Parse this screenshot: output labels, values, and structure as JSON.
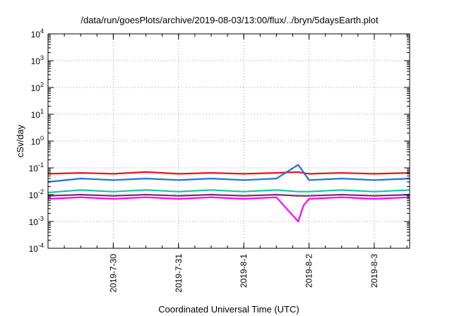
{
  "chart_data": {
    "type": "line",
    "title": "/data/run/goesPlots/archive/2019-08-03/13:00/flux/../bryn/5daysEarth.plot",
    "xlabel": "Coordinated Universal Time (UTC)",
    "ylabel": "cSv/day",
    "yscale": "log",
    "ylim": [
      0.0001,
      10000
    ],
    "xlim": [
      "2019-07-29T00:00",
      "2019-08-03T13:00"
    ],
    "yticks": [
      {
        "base": "10",
        "exp": "-4"
      },
      {
        "base": "10",
        "exp": "-3"
      },
      {
        "base": "10",
        "exp": "-2"
      },
      {
        "base": "10",
        "exp": "-1"
      },
      {
        "base": "10",
        "exp": "0"
      },
      {
        "base": "10",
        "exp": "1"
      },
      {
        "base": "10",
        "exp": "2"
      },
      {
        "base": "10",
        "exp": "3"
      },
      {
        "base": "10",
        "exp": "4"
      }
    ],
    "xticks": [
      "2019-7-30",
      "2019-7-31",
      "2019-8-1",
      "2019-8-2",
      "2019-8-3"
    ],
    "xtick_dates": [
      "2019-07-30",
      "2019-07-31",
      "2019-08-01",
      "2019-08-02",
      "2019-08-03"
    ],
    "grid": true,
    "legend": "none",
    "series": [
      {
        "color": "#e8141b",
        "x": [
          "2019-07-29T00:00",
          "2019-07-29T12:00",
          "2019-07-30T00:00",
          "2019-07-30T12:00",
          "2019-07-31T00:00",
          "2019-07-31T12:00",
          "2019-08-01T00:00",
          "2019-08-01T12:00",
          "2019-08-01T20:00",
          "2019-08-02T00:00",
          "2019-08-02T12:00",
          "2019-08-03T00:00",
          "2019-08-03T13:00"
        ],
        "values": [
          0.06,
          0.065,
          0.06,
          0.07,
          0.06,
          0.065,
          0.06,
          0.065,
          0.07,
          0.06,
          0.065,
          0.06,
          0.065
        ]
      },
      {
        "color": "#1f6fe5",
        "x": [
          "2019-07-29T00:00",
          "2019-07-29T12:00",
          "2019-07-30T00:00",
          "2019-07-30T12:00",
          "2019-07-31T00:00",
          "2019-07-31T12:00",
          "2019-08-01T00:00",
          "2019-08-01T12:00",
          "2019-08-01T20:00",
          "2019-08-02T00:00",
          "2019-08-02T12:00",
          "2019-08-03T00:00",
          "2019-08-03T13:00"
        ],
        "values": [
          0.03,
          0.04,
          0.035,
          0.04,
          0.035,
          0.04,
          0.035,
          0.04,
          0.13,
          0.035,
          0.04,
          0.035,
          0.04
        ]
      },
      {
        "color": "#19c39b",
        "x": [
          "2019-07-29T00:00",
          "2019-07-29T12:00",
          "2019-07-30T00:00",
          "2019-07-30T12:00",
          "2019-07-31T00:00",
          "2019-07-31T12:00",
          "2019-08-01T00:00",
          "2019-08-01T12:00",
          "2019-08-01T20:00",
          "2019-08-02T00:00",
          "2019-08-02T12:00",
          "2019-08-03T00:00",
          "2019-08-03T13:00"
        ],
        "values": [
          0.012,
          0.015,
          0.013,
          0.015,
          0.013,
          0.015,
          0.013,
          0.015,
          0.013,
          0.013,
          0.015,
          0.013,
          0.015
        ]
      },
      {
        "color": "#7a2a6f",
        "x": [
          "2019-07-29T00:00",
          "2019-07-29T12:00",
          "2019-07-30T00:00",
          "2019-07-30T12:00",
          "2019-07-31T00:00",
          "2019-07-31T12:00",
          "2019-08-01T00:00",
          "2019-08-01T12:00",
          "2019-08-01T20:00",
          "2019-08-02T00:00",
          "2019-08-02T12:00",
          "2019-08-03T00:00",
          "2019-08-03T13:00"
        ],
        "values": [
          0.009,
          0.01,
          0.009,
          0.01,
          0.009,
          0.01,
          0.009,
          0.01,
          0.009,
          0.009,
          0.01,
          0.009,
          0.01
        ]
      },
      {
        "color": "#ff00ff",
        "x": [
          "2019-07-29T00:00",
          "2019-07-29T12:00",
          "2019-07-30T00:00",
          "2019-07-30T12:00",
          "2019-07-31T00:00",
          "2019-07-31T12:00",
          "2019-08-01T00:00",
          "2019-08-01T12:00",
          "2019-08-01T20:00",
          "2019-08-01T22:00",
          "2019-08-02T00:00",
          "2019-08-02T12:00",
          "2019-08-03T00:00",
          "2019-08-03T13:00"
        ],
        "values": [
          0.007,
          0.008,
          0.007,
          0.008,
          0.007,
          0.008,
          0.007,
          0.008,
          0.001,
          0.004,
          0.007,
          0.008,
          0.007,
          0.008
        ]
      }
    ]
  }
}
